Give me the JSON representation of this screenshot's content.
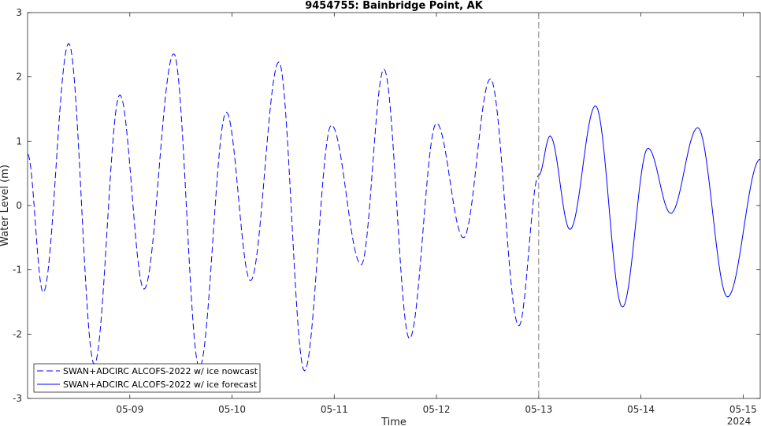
{
  "chart_data": {
    "type": "line",
    "title": "9454755: Bainbridge Point, AK",
    "xlabel": "Time",
    "ylabel": "Water Level (m)",
    "year_label": "2024",
    "xlim": [
      "2024-05-08 00:00",
      "2024-05-15 04:00"
    ],
    "ylim": [
      -3,
      3
    ],
    "x_ticks": [
      {
        "date": "2024-05-09 00:00",
        "label": "05-09"
      },
      {
        "date": "2024-05-10 00:00",
        "label": "05-10"
      },
      {
        "date": "2024-05-11 00:00",
        "label": "05-11"
      },
      {
        "date": "2024-05-12 00:00",
        "label": "05-12"
      },
      {
        "date": "2024-05-13 00:00",
        "label": "05-13"
      },
      {
        "date": "2024-05-14 00:00",
        "label": "05-14"
      },
      {
        "date": "2024-05-15 00:00",
        "label": "05-15"
      }
    ],
    "y_ticks": [
      -3,
      -2,
      -1,
      0,
      1,
      2,
      3
    ],
    "grid": false,
    "legend_position": "bottom-left",
    "nowcast_forecast_divider": "2024-05-13 00:00",
    "series": [
      {
        "name": "SWAN+ADCIRC ALCOFS-2022 w/ ice nowcast",
        "style": "dashed",
        "color": "#0000ff",
        "points": [
          [
            "2024-05-08 00:00",
            0.8
          ],
          [
            "2024-05-08 03:40",
            -1.35
          ],
          [
            "2024-05-08 09:40",
            2.52
          ],
          [
            "2024-05-08 15:40",
            -2.47
          ],
          [
            "2024-05-08 21:40",
            1.72
          ],
          [
            "2024-05-09 03:20",
            -1.3
          ],
          [
            "2024-05-09 10:20",
            2.36
          ],
          [
            "2024-05-09 16:20",
            -2.52
          ],
          [
            "2024-05-09 22:40",
            1.45
          ],
          [
            "2024-05-10 04:20",
            -1.17
          ],
          [
            "2024-05-10 11:00",
            2.23
          ],
          [
            "2024-05-10 17:00",
            -2.57
          ],
          [
            "2024-05-10 23:20",
            1.25
          ],
          [
            "2024-05-11 06:20",
            -0.92
          ],
          [
            "2024-05-11 11:40",
            2.12
          ],
          [
            "2024-05-11 17:40",
            -2.07
          ],
          [
            "2024-05-12 00:00",
            1.28
          ],
          [
            "2024-05-12 06:20",
            -0.5
          ],
          [
            "2024-05-12 12:40",
            1.97
          ],
          [
            "2024-05-12 19:20",
            -1.87
          ],
          [
            "2024-05-13 00:00",
            0.47
          ]
        ]
      },
      {
        "name": "SWAN+ADCIRC ALCOFS-2022 w/ ice forecast",
        "style": "solid",
        "color": "#0000ff",
        "points": [
          [
            "2024-05-13 00:00",
            0.47
          ],
          [
            "2024-05-13 02:40",
            1.08
          ],
          [
            "2024-05-13 07:20",
            -0.37
          ],
          [
            "2024-05-13 13:20",
            1.55
          ],
          [
            "2024-05-13 19:40",
            -1.58
          ],
          [
            "2024-05-14 01:40",
            0.89
          ],
          [
            "2024-05-14 07:00",
            -0.12
          ],
          [
            "2024-05-14 13:20",
            1.21
          ],
          [
            "2024-05-14 20:20",
            -1.42
          ],
          [
            "2024-05-15 04:00",
            0.72
          ]
        ]
      }
    ]
  }
}
